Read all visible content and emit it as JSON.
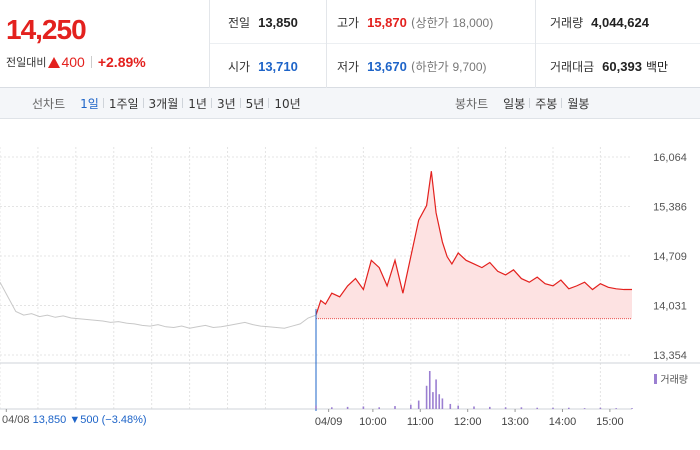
{
  "quote": {
    "price": "14,250",
    "change_label": "전일대비",
    "change_value": "400",
    "change_pct": "+2.89%",
    "prev_close_label": "전일",
    "prev_close": "13,850",
    "high_label": "고가",
    "high": "15,870",
    "upper_limit_label": "(상한가",
    "upper_limit": "18,000)",
    "volume_label": "거래량",
    "volume": "4,044,624",
    "open_label": "시가",
    "open": "13,710",
    "low_label": "저가",
    "low": "13,670",
    "lower_limit_label": "(하한가",
    "lower_limit": "9,700)",
    "amount_label": "거래대금",
    "amount": "60,393",
    "amount_unit": "백만",
    "colors": {
      "up": "#e3211e",
      "down": "#1e64c8"
    }
  },
  "tabs": {
    "line_title": "선차트",
    "line_items": [
      "1일",
      "1주일",
      "3개월",
      "1년",
      "3년",
      "5년",
      "10년"
    ],
    "line_active": 0,
    "candle_title": "봉차트",
    "candle_items": [
      "일봉",
      "주봉",
      "월봉"
    ]
  },
  "chart_info": {
    "prev_date": "04/08",
    "prev_close": "13,850",
    "prev_change_arrow": "▼",
    "prev_change": "500",
    "prev_change_pct": "(−3.48%)",
    "volume_legend": "거래량"
  },
  "chart_data": {
    "type": "line",
    "title": "",
    "ylim": [
      13354,
      16064
    ],
    "y_ticks": [
      "16,064",
      "15,386",
      "14,709",
      "14,031",
      "13,354"
    ],
    "y_tick_values": [
      16064,
      15386,
      14709,
      14031,
      13354
    ],
    "x_ticks": [
      "04/08",
      "04/09",
      "10:00",
      "11:00",
      "12:00",
      "13:00",
      "14:00",
      "15:00"
    ],
    "baseline": 13850,
    "series": [
      {
        "key": "prev_day",
        "color": "#c8c8c8",
        "x": [
          0,
          0.5,
          1,
          1.5,
          2,
          2.5,
          3,
          3.5,
          4,
          4.5,
          5,
          5.5,
          6,
          6.5,
          7,
          7.5,
          8,
          8.5,
          9,
          9.5,
          10,
          10.5,
          11,
          11.5,
          12,
          12.5,
          13,
          13.5,
          14,
          14.5,
          15,
          15.5,
          16,
          16.5,
          17,
          17.5,
          18,
          18.5,
          19,
          19.5,
          20
        ],
        "values": [
          14350,
          14150,
          13950,
          13900,
          13920,
          13880,
          13900,
          13870,
          13890,
          13860,
          13850,
          13840,
          13830,
          13820,
          13800,
          13810,
          13790,
          13780,
          13760,
          13750,
          13770,
          13740,
          13730,
          13750,
          13720,
          13740,
          13760,
          13730,
          13740,
          13760,
          13780,
          13800,
          13770,
          13750,
          13740,
          13730,
          13720,
          13750,
          13780,
          13860,
          13900
        ]
      },
      {
        "key": "today",
        "color": "#e3211e",
        "x": [
          20,
          20.3,
          20.6,
          21,
          21.5,
          22,
          22.5,
          23,
          23.5,
          24,
          24.5,
          25,
          25.5,
          26,
          26.5,
          27,
          27.3,
          27.6,
          28,
          28.3,
          28.6,
          29,
          29.5,
          30,
          30.5,
          31,
          31.5,
          32,
          32.5,
          33,
          33.5,
          34,
          34.5,
          35,
          35.5,
          36,
          36.5,
          37,
          37.5,
          38,
          38.5,
          39,
          39.5,
          40
        ],
        "values": [
          13900,
          14100,
          14050,
          14200,
          14150,
          14300,
          14400,
          14250,
          14650,
          14550,
          14300,
          14650,
          14200,
          14700,
          15200,
          15400,
          15870,
          15300,
          14900,
          14700,
          14600,
          14750,
          14650,
          14600,
          14550,
          14620,
          14500,
          14450,
          14520,
          14400,
          14350,
          14420,
          14330,
          14300,
          14380,
          14260,
          14300,
          14350,
          14250,
          14330,
          14280,
          14260,
          14250,
          14250
        ]
      }
    ],
    "volume": {
      "color": "#9b7fd1",
      "x": [
        20,
        21,
        22,
        23,
        24,
        25,
        26,
        26.5,
        27,
        27.2,
        27.4,
        27.6,
        27.8,
        28,
        28.5,
        29,
        30,
        31,
        32,
        33,
        34,
        35,
        36,
        37,
        38,
        39,
        40
      ],
      "values": [
        8,
        4,
        5,
        6,
        4,
        7,
        10,
        20,
        55,
        90,
        40,
        70,
        35,
        25,
        12,
        8,
        6,
        5,
        4,
        4,
        3,
        3,
        3,
        2,
        3,
        2,
        2
      ]
    }
  }
}
